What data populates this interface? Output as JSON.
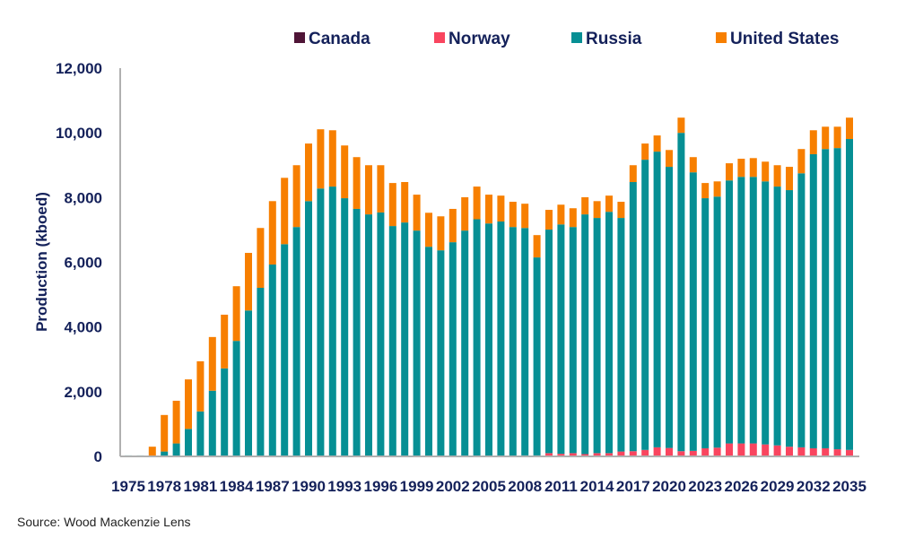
{
  "chart_data": {
    "type": "bar",
    "stacked": true,
    "title": "",
    "xlabel": "",
    "ylabel": "Production (kboed)",
    "ylim": [
      0,
      12000
    ],
    "yticks": [
      0,
      2000,
      4000,
      6000,
      8000,
      10000,
      12000
    ],
    "ytick_labels": [
      "0",
      "2,000",
      "4,000",
      "6,000",
      "8,000",
      "10,000",
      "12,000"
    ],
    "grid": false,
    "legend_position": "top",
    "categories": [
      1975,
      1976,
      1977,
      1978,
      1979,
      1980,
      1981,
      1982,
      1983,
      1984,
      1985,
      1986,
      1987,
      1988,
      1989,
      1990,
      1991,
      1992,
      1993,
      1994,
      1995,
      1996,
      1997,
      1998,
      1999,
      2000,
      2001,
      2002,
      2003,
      2004,
      2005,
      2006,
      2007,
      2008,
      2009,
      2010,
      2011,
      2012,
      2013,
      2014,
      2015,
      2016,
      2017,
      2018,
      2019,
      2020,
      2021,
      2022,
      2023,
      2024,
      2025,
      2026,
      2027,
      2028,
      2029,
      2030,
      2031,
      2032,
      2033,
      2034,
      2035
    ],
    "xtick_labels": [
      "1975",
      "1978",
      "1981",
      "1984",
      "1987",
      "1990",
      "1993",
      "1996",
      "1999",
      "2002",
      "2005",
      "2008",
      "2011",
      "2014",
      "2017",
      "2020",
      "2023",
      "2026",
      "2029",
      "2032",
      "2035"
    ],
    "series": [
      {
        "name": "Canada",
        "color": "#4f1537",
        "values": [
          0,
          0,
          0,
          0,
          0,
          0,
          0,
          0,
          0,
          0,
          0,
          0,
          0,
          0,
          0,
          0,
          0,
          0,
          0,
          0,
          0,
          0,
          0,
          0,
          0,
          0,
          0,
          0,
          0,
          0,
          0,
          0,
          0,
          0,
          0,
          0,
          0,
          0,
          0,
          0,
          0,
          0,
          0,
          0,
          0,
          0,
          0,
          0,
          0,
          0,
          0,
          0,
          0,
          0,
          0,
          0,
          0,
          0,
          0,
          0,
          0
        ]
      },
      {
        "name": "Norway",
        "color": "#f9455f",
        "values": [
          0,
          0,
          0,
          0,
          0,
          0,
          0,
          0,
          0,
          0,
          0,
          0,
          0,
          0,
          0,
          0,
          0,
          0,
          0,
          0,
          0,
          0,
          0,
          0,
          0,
          0,
          0,
          0,
          0,
          0,
          0,
          0,
          0,
          30,
          30,
          100,
          80,
          100,
          70,
          100,
          100,
          150,
          160,
          200,
          280,
          260,
          160,
          170,
          250,
          270,
          400,
          400,
          400,
          370,
          340,
          300,
          280,
          250,
          250,
          220,
          200
        ]
      },
      {
        "name": "Russia",
        "color": "#068f94",
        "values": [
          30,
          30,
          0,
          150,
          400,
          850,
          1390,
          2030,
          2720,
          3570,
          4510,
          5210,
          5930,
          6560,
          7090,
          7890,
          8280,
          8340,
          7980,
          7650,
          7480,
          7540,
          7120,
          7230,
          6980,
          6480,
          6370,
          6620,
          6980,
          7330,
          7200,
          7260,
          7090,
          7030,
          6120,
          6910,
          7090,
          6990,
          7410,
          7270,
          7460,
          7220,
          8320,
          8970,
          9140,
          8690,
          9840,
          8610,
          7730,
          7760,
          8130,
          8240,
          8240,
          8130,
          8000,
          7930,
          8470,
          9090,
          9250,
          9310,
          9610
        ]
      },
      {
        "name": "United States",
        "color": "#f77f00",
        "values": [
          0,
          0,
          300,
          1130,
          1320,
          1530,
          1550,
          1660,
          1660,
          1690,
          1780,
          1850,
          1960,
          2050,
          1910,
          1780,
          1830,
          1740,
          1630,
          1600,
          1520,
          1460,
          1330,
          1250,
          1110,
          1050,
          1050,
          1030,
          1030,
          1010,
          890,
          800,
          780,
          750,
          690,
          610,
          610,
          580,
          530,
          520,
          500,
          500,
          520,
          500,
          500,
          520,
          470,
          470,
          470,
          470,
          530,
          560,
          580,
          610,
          660,
          720,
          750,
          740,
          690,
          660,
          660
        ]
      }
    ],
    "source": "Source: Wood Mackenzie Lens"
  }
}
